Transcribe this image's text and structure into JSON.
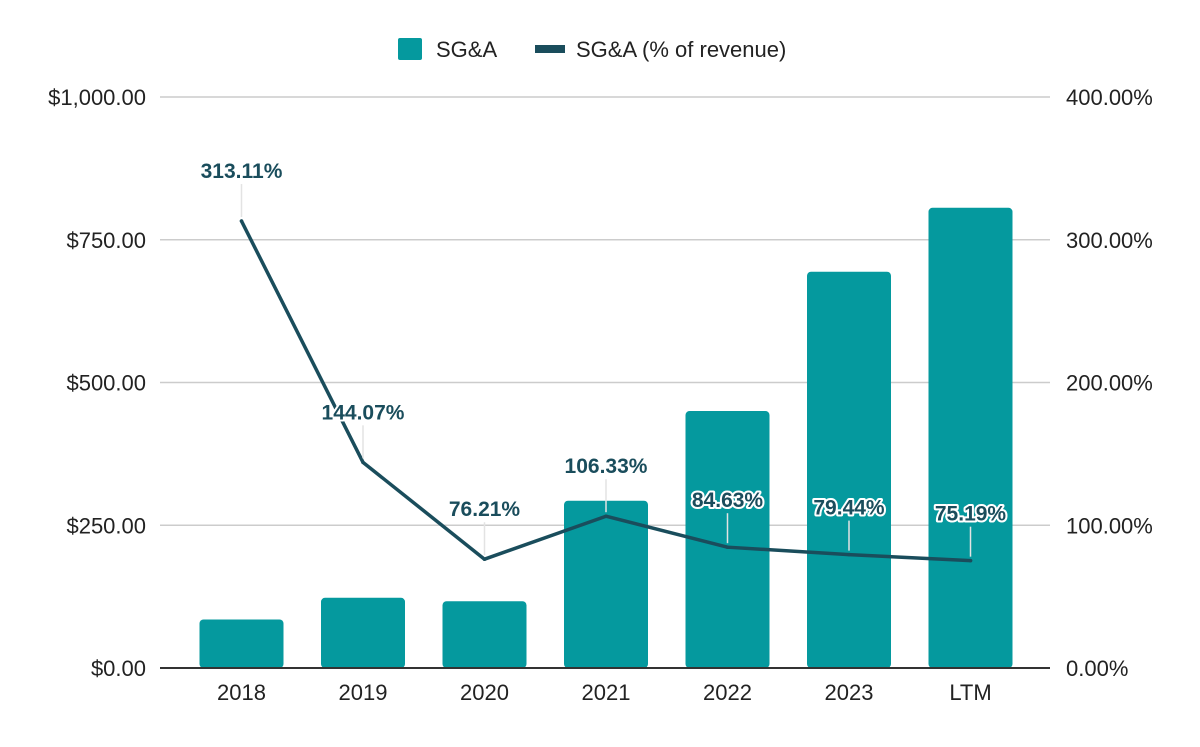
{
  "chart_data": {
    "type": "bar",
    "categories": [
      "2018",
      "2019",
      "2020",
      "2021",
      "2022",
      "2023",
      "LTM"
    ],
    "series": [
      {
        "name": "SG&A",
        "type": "bar",
        "axis": "left",
        "values": [
          85,
          123,
          117,
          293,
          450,
          694,
          806
        ]
      },
      {
        "name": "SG&A (% of revenue)",
        "type": "line",
        "axis": "right",
        "values": [
          313.11,
          144.07,
          76.21,
          106.33,
          84.63,
          79.44,
          75.19
        ],
        "labels": [
          "313.11%",
          "144.07%",
          "76.21%",
          "106.33%",
          "84.63%",
          "79.44%",
          "75.19%"
        ]
      }
    ],
    "y_left": {
      "ylim": [
        0,
        1000
      ],
      "ticks": [
        0,
        250,
        500,
        750,
        1000
      ],
      "tick_labels": [
        "$0.00",
        "$250.00",
        "$500.00",
        "$750.00",
        "$1,000.00"
      ]
    },
    "y_right": {
      "ylim": [
        0,
        400
      ],
      "ticks": [
        0,
        100,
        200,
        300,
        400
      ],
      "tick_labels": [
        "0.00%",
        "100.00%",
        "200.00%",
        "300.00%",
        "400.00%"
      ]
    },
    "legend": {
      "position": "top-center",
      "items": [
        "SG&A",
        "SG&A (% of revenue)"
      ]
    },
    "grid": true,
    "title": "",
    "xlabel": "",
    "ylabel": "",
    "colors": {
      "bar": "#05999E",
      "line": "#1A4D5C",
      "label": "#1A4D5C",
      "grid": "#CCCCCC",
      "axis": "#333333",
      "text": "#222222"
    }
  }
}
